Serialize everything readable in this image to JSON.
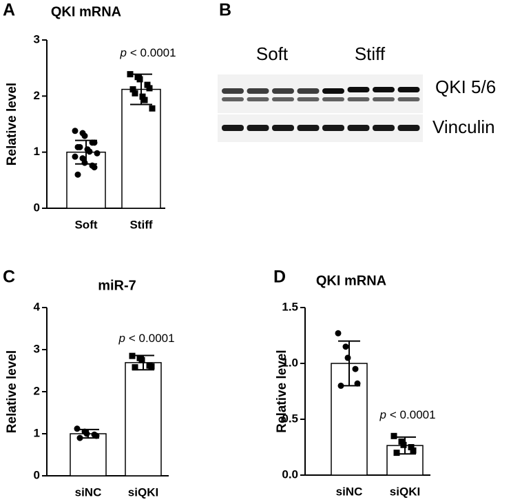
{
  "chart_data": [
    {
      "type": "bar",
      "panel": "A",
      "title": "QKI mRNA",
      "ylabel": "Relative level",
      "categories": [
        "Soft",
        "Stiff"
      ],
      "values": [
        1.0,
        2.12
      ],
      "errors": [
        0.21,
        0.27
      ],
      "points": [
        [
          1.38,
          1.34,
          1.29,
          1.17,
          1.17,
          1.09,
          1.09,
          1.05,
          1.01,
          0.98,
          0.92,
          0.89,
          0.81,
          0.76,
          0.73,
          0.6
        ],
        [
          2.39,
          2.34,
          2.3,
          2.2,
          2.14,
          2.12,
          2.05,
          1.99,
          1.93,
          1.78
        ]
      ],
      "markers": [
        "circle",
        "square"
      ],
      "color": "#ffffff",
      "ylim": [
        0,
        3
      ],
      "yticks": [
        0,
        1,
        2,
        3
      ],
      "annotation_italic": "p",
      "annotation": "< 0.0001"
    },
    {
      "type": "bar",
      "panel": "C",
      "title": "miR-7",
      "ylabel": "Relative level",
      "categories": [
        "siNC",
        "siQKI"
      ],
      "values": [
        1.0,
        2.69
      ],
      "errors": [
        0.1,
        0.17
      ],
      "points": [
        [
          1.12,
          1.05,
          1.0,
          0.98,
          0.95,
          0.9
        ],
        [
          2.85,
          2.8,
          2.75,
          2.62,
          2.6,
          2.58
        ]
      ],
      "markers": [
        "circle",
        "square"
      ],
      "color": "#ffffff",
      "ylim": [
        0,
        4
      ],
      "yticks": [
        0,
        1,
        2,
        3,
        4
      ],
      "annotation_italic": "p",
      "annotation": "< 0.0001"
    },
    {
      "type": "bar",
      "panel": "D",
      "title": "QKI mRNA",
      "ylabel": "Relative level",
      "categories": [
        "siNC",
        "siQKI"
      ],
      "values": [
        1.0,
        0.265
      ],
      "errors": [
        0.2,
        0.075
      ],
      "points": [
        [
          1.27,
          1.15,
          1.05,
          0.95,
          0.82,
          0.8
        ],
        [
          0.35,
          0.3,
          0.27,
          0.25,
          0.22,
          0.2
        ]
      ],
      "markers": [
        "circle",
        "square"
      ],
      "color": "#ffffff",
      "ylim": [
        0,
        1.5
      ],
      "yticks": [
        {
          "value": 0,
          "label": "0.0"
        },
        0.5,
        {
          "value": 1,
          "label": "1.0"
        },
        1.5
      ],
      "annotation_italic": "p",
      "annotation": "< 0.0001"
    }
  ],
  "blot": {
    "panel": "B",
    "groups": [
      "Soft",
      "Stiff"
    ],
    "rows": [
      "QKI 5/6",
      "Vinculin"
    ]
  }
}
